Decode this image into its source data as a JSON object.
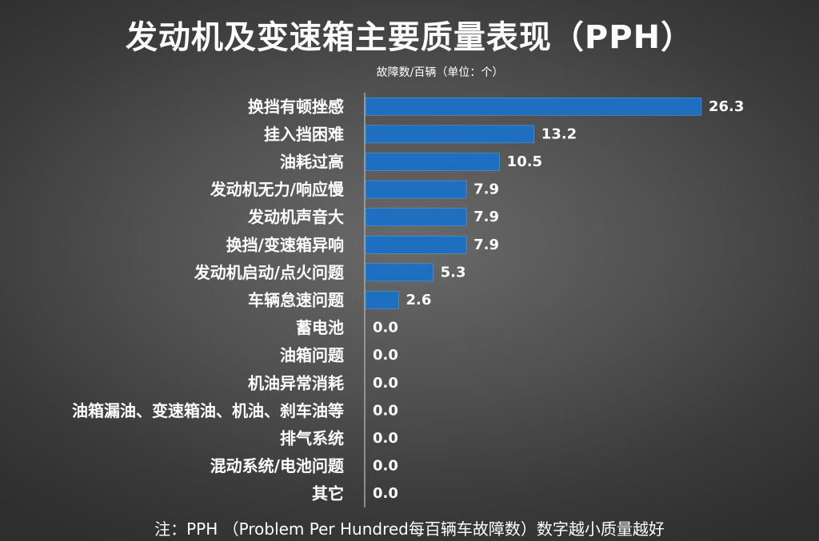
{
  "title": "发动机及变速箱主要质量表现（PPH）",
  "unit_label": "故障数/百辆（单位：个）",
  "footnote": "注：PPH （Problem Per Hundred每百辆车故障数）数字越小质量越好",
  "chart_data": {
    "type": "bar",
    "orientation": "horizontal",
    "categories": [
      "换挡有顿挫感",
      "挂入挡困难",
      "油耗过高",
      "发动机无力/响应慢",
      "发动机声音大",
      "换挡/变速箱异响",
      "发动机启动/点火问题",
      "车辆怠速问题",
      "蓄电池",
      "油箱问题",
      "机油异常消耗",
      "油箱漏油、变速箱油、机油、刹车油等",
      "排气系统",
      "混动系统/电池问题",
      "其它"
    ],
    "values": [
      26.3,
      13.2,
      10.5,
      7.9,
      7.9,
      7.9,
      5.3,
      2.6,
      0.0,
      0.0,
      0.0,
      0.0,
      0.0,
      0.0,
      0.0
    ],
    "value_labels": [
      "26.3",
      "13.2",
      "10.5",
      "7.9",
      "7.9",
      "7.9",
      "5.3",
      "2.6",
      "0.0",
      "0.0",
      "0.0",
      "0.0",
      "0.0",
      "0.0",
      "0.0"
    ],
    "xlim": [
      0,
      26.3
    ],
    "bar_color": "#1f6fc0",
    "grid": false
  }
}
